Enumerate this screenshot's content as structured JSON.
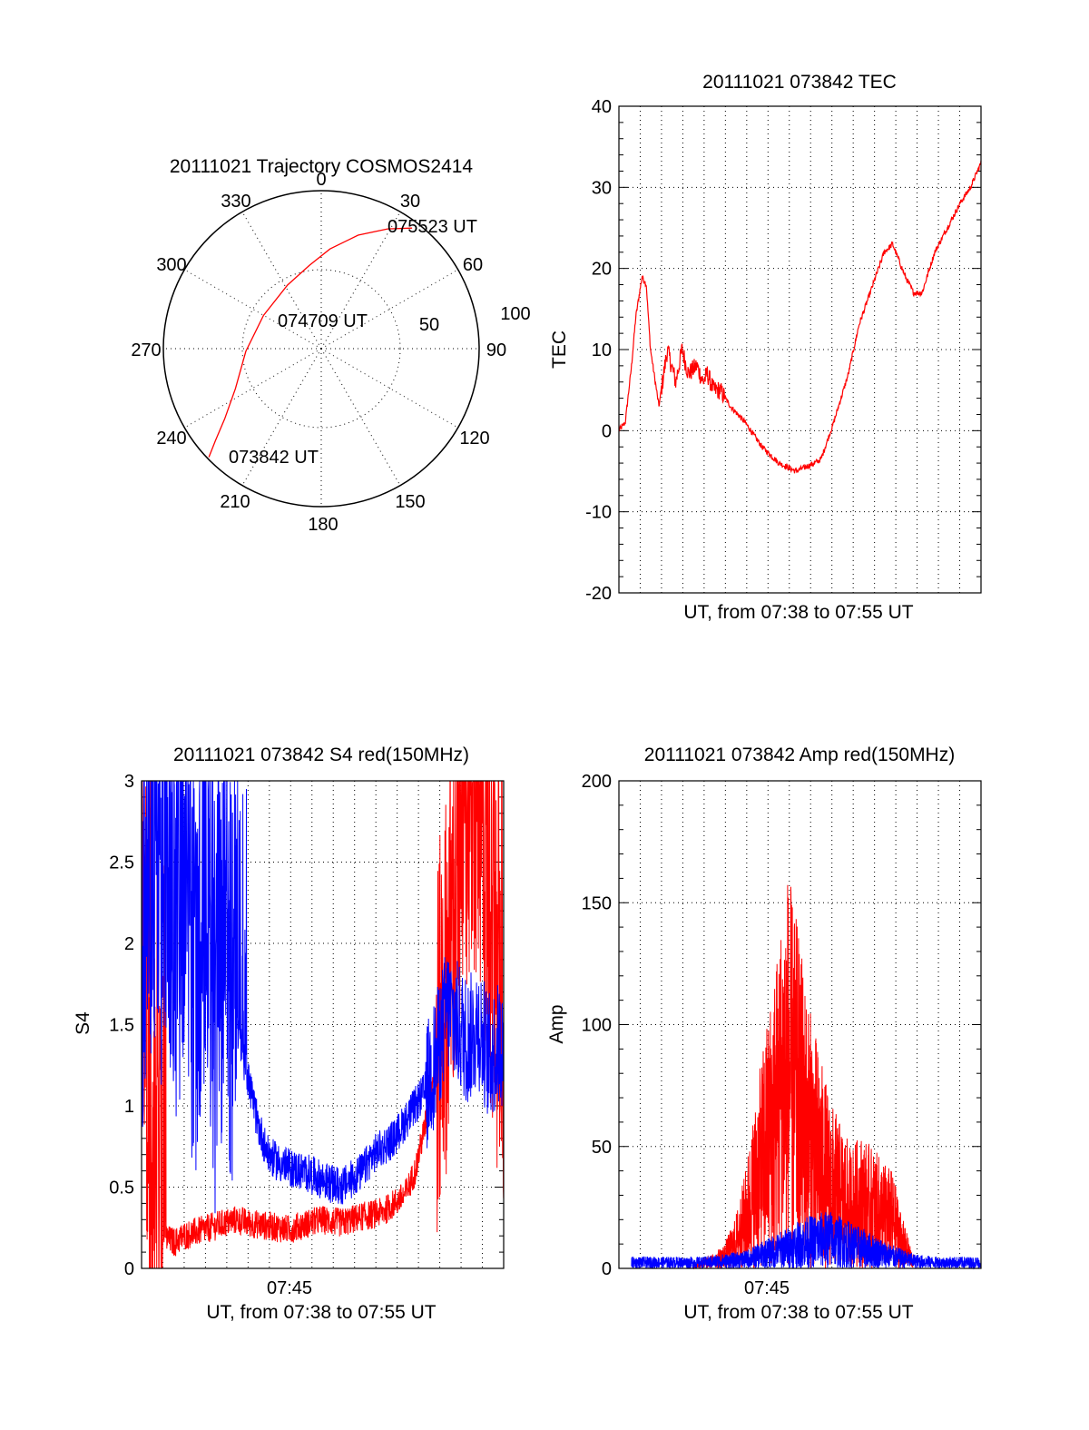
{
  "chart_data": [
    {
      "type": "polar",
      "title": "20111021 Trajectory COSMOS2414",
      "azimuth_labels": [
        "0",
        "30",
        "60",
        "90",
        "120",
        "150",
        "180",
        "210",
        "240",
        "270",
        "300",
        "330"
      ],
      "radius_labels": [
        "50",
        "100"
      ],
      "grid": true,
      "series": [
        {
          "color": "#ff0000",
          "points": [
            {
              "az": 226,
              "el": 1
            },
            {
              "az": 229,
              "el": 10
            },
            {
              "az": 234,
              "el": 22
            },
            {
              "az": 245,
              "el": 36
            },
            {
              "az": 268,
              "el": 47
            },
            {
              "az": 300,
              "el": 52
            },
            {
              "az": 332,
              "el": 49
            },
            {
              "az": 352,
              "el": 42
            },
            {
              "az": 5,
              "el": 33
            },
            {
              "az": 18,
              "el": 22
            },
            {
              "az": 29,
              "el": 12
            },
            {
              "az": 37,
              "el": 4
            }
          ]
        }
      ],
      "annotations": [
        "075523 UT",
        "074709 UT",
        "073842 UT"
      ]
    },
    {
      "type": "line",
      "title": "20111021 073842 TEC",
      "xlabel": "UT, from 07:38 to 07:55 UT",
      "ylabel": "TEC",
      "xlim": [
        0,
        17.2
      ],
      "ylim": [
        -20,
        40
      ],
      "yticks": [
        "-20",
        "-10",
        "0",
        "10",
        "20",
        "30",
        "40"
      ],
      "grid": true,
      "series": [
        {
          "color": "#ff0000",
          "x": [
            0.0,
            0.3,
            0.6,
            0.8,
            1.1,
            1.3,
            1.5,
            1.9,
            2.3,
            2.7,
            3.0,
            3.3,
            3.7,
            4.0,
            4.2,
            4.5,
            4.8,
            5.3,
            6.0,
            6.8,
            7.6,
            8.4,
            9.3,
            9.6,
            10.2,
            10.9,
            11.4,
            12.2,
            12.6,
            13.0,
            13.6,
            14.0,
            14.4,
            15.0,
            15.6,
            16.2,
            16.7,
            17.2
          ],
          "y": [
            0,
            1,
            8,
            14,
            19,
            18,
            10,
            3,
            10,
            6,
            10,
            7,
            8,
            6,
            7,
            5,
            5,
            3,
            1,
            -2,
            -4,
            -5,
            -4,
            -3.5,
            1,
            7,
            13,
            19,
            22,
            23,
            19,
            17,
            17,
            22,
            25,
            28,
            30,
            33
          ]
        }
      ]
    },
    {
      "type": "line",
      "title": "20111021 073842 S4 red(150MHz)",
      "xlabel": "UT, from 07:38 to 07:55 UT",
      "ylabel": "S4",
      "xlim": [
        0,
        17.2
      ],
      "ylim": [
        0,
        3
      ],
      "xticks": [
        "07:45"
      ],
      "yticks": [
        "0",
        "0.5",
        "1",
        "1.5",
        "2",
        "2.5",
        "3"
      ],
      "grid": true,
      "series": [
        {
          "color": "#ff0000",
          "x": [
            0.0,
            0.4,
            0.8,
            1.2,
            1.6,
            2.0,
            2.5,
            3.0,
            3.5,
            4.0,
            4.5,
            5.0,
            5.5,
            6.0,
            6.5,
            7.0,
            7.5,
            8.0,
            8.5,
            9.0,
            9.5,
            10.0,
            10.5,
            11.0,
            11.5,
            12.0,
            12.5,
            13.0,
            13.5,
            14.0,
            14.5,
            15.0,
            15.5,
            16.0,
            16.5,
            17.2
          ],
          "y": [
            2.8,
            0.6,
            0.35,
            0.18,
            0.16,
            0.2,
            0.22,
            0.24,
            0.26,
            0.28,
            0.3,
            0.28,
            0.27,
            0.26,
            0.25,
            0.24,
            0.26,
            0.28,
            0.3,
            0.29,
            0.28,
            0.3,
            0.32,
            0.33,
            0.35,
            0.4,
            0.45,
            0.6,
            0.9,
            1.3,
            1.8,
            2.4,
            2.8,
            3.0,
            2.2,
            1.5
          ]
        },
        {
          "color": "#0000ff",
          "x": [
            0.0,
            0.4,
            0.8,
            1.2,
            1.6,
            2.0,
            2.5,
            3.0,
            3.5,
            4.0,
            4.5,
            5.0,
            5.5,
            6.0,
            6.5,
            7.0,
            7.5,
            8.0,
            8.5,
            9.0,
            9.5,
            10.0,
            10.5,
            11.0,
            11.5,
            12.0,
            12.5,
            13.0,
            13.5,
            14.0,
            14.5,
            15.0,
            15.5,
            16.0,
            16.5,
            17.2
          ],
          "y": [
            1.8,
            2.6,
            2.2,
            2.8,
            2.0,
            2.6,
            1.8,
            2.4,
            1.6,
            2.0,
            1.5,
            1.2,
            0.9,
            0.7,
            0.65,
            0.62,
            0.6,
            0.58,
            0.55,
            0.52,
            0.5,
            0.55,
            0.6,
            0.7,
            0.75,
            0.8,
            0.9,
            1.0,
            1.1,
            1.3,
            1.6,
            1.5,
            1.4,
            1.5,
            1.3,
            1.4
          ]
        }
      ]
    },
    {
      "type": "line",
      "title": "20111021 073842 Amp red(150MHz)",
      "xlabel": "UT, from 07:38 to 07:55 UT",
      "ylabel": "Amp",
      "xlim": [
        0,
        17.2
      ],
      "ylim": [
        0,
        200
      ],
      "xticks": [
        "07:45"
      ],
      "yticks": [
        "0",
        "50",
        "100",
        "150",
        "200"
      ],
      "grid": true,
      "series": [
        {
          "color": "#ff0000",
          "x": [
            3.5,
            4.0,
            4.5,
            5.0,
            5.5,
            6.0,
            6.5,
            7.0,
            7.5,
            8.0,
            8.5,
            9.0,
            9.5,
            10.0,
            10.5,
            11.0,
            11.5,
            12.0,
            12.5,
            13.0,
            13.5,
            14.0
          ],
          "y": [
            2,
            4,
            6,
            10,
            20,
            40,
            70,
            100,
            130,
            165,
            140,
            110,
            90,
            70,
            60,
            50,
            55,
            50,
            45,
            40,
            20,
            5
          ]
        },
        {
          "color": "#0000ff",
          "x": [
            0.0,
            1.0,
            2.0,
            3.0,
            4.0,
            5.0,
            6.0,
            7.0,
            8.0,
            9.0,
            10.0,
            11.0,
            12.0,
            13.0,
            14.0,
            15.0,
            16.0,
            17.2
          ],
          "y": [
            4,
            4,
            4,
            4,
            4,
            5,
            6,
            10,
            14,
            18,
            20,
            16,
            12,
            8,
            5,
            4,
            4,
            4
          ]
        }
      ]
    }
  ]
}
